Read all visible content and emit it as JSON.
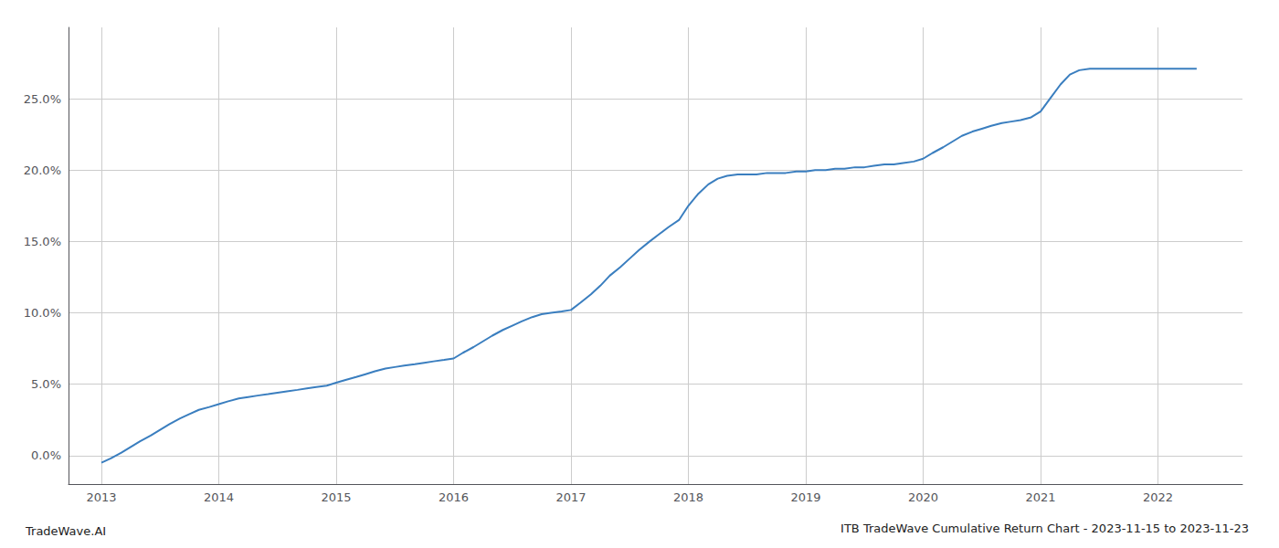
{
  "chart_data": {
    "type": "line",
    "title": "ITB TradeWave Cumulative Return Chart - 2023-11-15 to 2023-11-23",
    "annotations": [
      "TradeWave.AI"
    ],
    "color": "#3a7ebf",
    "grid": true,
    "x": [
      2013.0,
      2013.08,
      2013.17,
      2013.25,
      2013.33,
      2013.42,
      2013.5,
      2013.58,
      2013.67,
      2013.75,
      2013.83,
      2013.92,
      2014.0,
      2014.08,
      2014.17,
      2014.25,
      2014.33,
      2014.42,
      2014.5,
      2014.58,
      2014.67,
      2014.75,
      2014.83,
      2014.92,
      2015.0,
      2015.08,
      2015.17,
      2015.25,
      2015.33,
      2015.42,
      2015.5,
      2015.58,
      2015.67,
      2015.75,
      2015.83,
      2015.92,
      2016.0,
      2016.08,
      2016.17,
      2016.25,
      2016.33,
      2016.42,
      2016.5,
      2016.58,
      2016.67,
      2016.75,
      2016.83,
      2016.92,
      2017.0,
      2017.08,
      2017.17,
      2017.25,
      2017.33,
      2017.42,
      2017.5,
      2017.58,
      2017.67,
      2017.75,
      2017.83,
      2017.92,
      2018.0,
      2018.08,
      2018.17,
      2018.25,
      2018.33,
      2018.42,
      2018.5,
      2018.58,
      2018.67,
      2018.75,
      2018.83,
      2018.92,
      2019.0,
      2019.08,
      2019.17,
      2019.25,
      2019.33,
      2019.42,
      2019.5,
      2019.58,
      2019.67,
      2019.75,
      2019.83,
      2019.92,
      2020.0,
      2020.08,
      2020.17,
      2020.25,
      2020.33,
      2020.42,
      2020.5,
      2020.58,
      2020.67,
      2020.75,
      2020.83,
      2020.92,
      2021.0,
      2021.08,
      2021.17,
      2021.25,
      2021.33,
      2021.42,
      2021.5,
      2021.58,
      2021.67,
      2021.75,
      2021.83,
      2021.92,
      2022.0,
      2022.08,
      2022.17,
      2022.25,
      2022.33
    ],
    "values": [
      -0.005,
      -0.002,
      0.002,
      0.006,
      0.01,
      0.014,
      0.018,
      0.022,
      0.026,
      0.029,
      0.032,
      0.034,
      0.036,
      0.038,
      0.04,
      0.041,
      0.042,
      0.043,
      0.044,
      0.045,
      0.046,
      0.047,
      0.048,
      0.049,
      0.051,
      0.053,
      0.055,
      0.057,
      0.059,
      0.061,
      0.062,
      0.063,
      0.064,
      0.065,
      0.066,
      0.067,
      0.068,
      0.072,
      0.076,
      0.08,
      0.084,
      0.088,
      0.091,
      0.094,
      0.097,
      0.099,
      0.1,
      0.101,
      0.102,
      0.107,
      0.113,
      0.119,
      0.126,
      0.132,
      0.138,
      0.144,
      0.15,
      0.155,
      0.16,
      0.165,
      0.175,
      0.183,
      0.19,
      0.194,
      0.196,
      0.197,
      0.197,
      0.197,
      0.198,
      0.198,
      0.198,
      0.199,
      0.199,
      0.2,
      0.2,
      0.201,
      0.201,
      0.202,
      0.202,
      0.203,
      0.204,
      0.204,
      0.205,
      0.206,
      0.208,
      0.212,
      0.216,
      0.22,
      0.224,
      0.227,
      0.229,
      0.231,
      0.233,
      0.234,
      0.235,
      0.237,
      0.241,
      0.25,
      0.26,
      0.267,
      0.27,
      0.271,
      0.271,
      0.271,
      0.271,
      0.271,
      0.271,
      0.271,
      0.271,
      0.271,
      0.271,
      0.271,
      0.271
    ],
    "xlim": [
      2012.72,
      2022.72
    ],
    "xticks": [
      2013,
      2014,
      2015,
      2016,
      2017,
      2018,
      2019,
      2020,
      2021,
      2022
    ],
    "ylim": [
      -0.02,
      0.3
    ],
    "yticks": [
      {
        "value": 0.0,
        "label": "0.0%"
      },
      {
        "value": 0.05,
        "label": "5.0%"
      },
      {
        "value": 0.1,
        "label": "10.0%"
      },
      {
        "value": 0.15,
        "label": "15.0%"
      },
      {
        "value": 0.2,
        "label": "20.0%"
      },
      {
        "value": 0.25,
        "label": "25.0%"
      }
    ]
  }
}
